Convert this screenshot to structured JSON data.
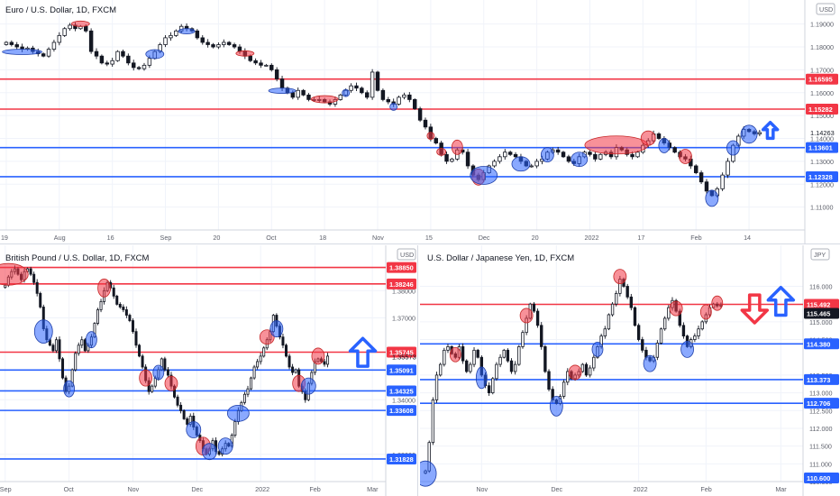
{
  "chart_data": [
    {
      "id": "eur",
      "type": "candlestick",
      "title": "Euro / U.S. Dollar, 1D, FXCM",
      "currency_badge": "USD",
      "ylim": [
        1.1,
        1.195
      ],
      "y_ticks": [
        "1.19000",
        "1.18000",
        "1.17000",
        "1.16000",
        "1.15000",
        "1.14000",
        "1.13000",
        "1.12000",
        "1.11000"
      ],
      "y_tick_values": [
        1.19,
        1.18,
        1.17,
        1.16,
        1.15,
        1.14,
        1.13,
        1.12,
        1.11
      ],
      "x_ticks": [
        "19",
        "Aug",
        "16",
        "Sep",
        "20",
        "Oct",
        "18",
        "Nov",
        "15",
        "Dec",
        "20",
        "2022",
        "17",
        "Feb",
        "14"
      ],
      "x_tick_bars": [
        0,
        10,
        20,
        30,
        40,
        50,
        60,
        70,
        80,
        90,
        100,
        110,
        120,
        130,
        140
      ],
      "n_bars": 150,
      "resistance": [
        1.16595,
        1.15282
      ],
      "support": [
        1.13601,
        1.12328
      ],
      "price_labels": [
        {
          "text": "1.16595",
          "kind": "res"
        },
        {
          "text": "1.15282",
          "kind": "res"
        },
        {
          "text": "1.14263",
          "kind": "plain"
        },
        {
          "text": "1.13601",
          "kind": "sup"
        },
        {
          "text": "1.12328",
          "kind": "sup"
        }
      ],
      "closes": [
        1.182,
        1.181,
        1.18,
        1.179,
        1.1795,
        1.178,
        1.177,
        1.176,
        1.179,
        1.182,
        1.185,
        1.188,
        1.1895,
        1.188,
        1.189,
        1.187,
        1.178,
        1.176,
        1.173,
        1.1725,
        1.174,
        1.178,
        1.176,
        1.173,
        1.171,
        1.1705,
        1.172,
        1.175,
        1.178,
        1.181,
        1.184,
        1.185,
        1.187,
        1.189,
        1.188,
        1.187,
        1.184,
        1.182,
        1.181,
        1.18,
        1.181,
        1.182,
        1.181,
        1.18,
        1.178,
        1.176,
        1.174,
        1.173,
        1.172,
        1.172,
        1.17,
        1.166,
        1.162,
        1.16,
        1.158,
        1.161,
        1.159,
        1.157,
        1.157,
        1.157,
        1.156,
        1.155,
        1.157,
        1.159,
        1.161,
        1.163,
        1.162,
        1.16,
        1.158,
        1.169,
        1.161,
        1.157,
        1.156,
        1.155,
        1.158,
        1.159,
        1.157,
        1.153,
        1.148,
        1.145,
        1.14,
        1.138,
        1.133,
        1.13,
        1.131,
        1.135,
        1.134,
        1.128,
        1.124,
        1.122,
        1.125,
        1.128,
        1.13,
        1.132,
        1.134,
        1.133,
        1.132,
        1.13,
        1.128,
        1.128,
        1.13,
        1.131,
        1.134,
        1.135,
        1.134,
        1.132,
        1.13,
        1.129,
        1.132,
        1.134,
        1.133,
        1.131,
        1.133,
        1.134,
        1.132,
        1.136,
        1.135,
        1.133,
        1.132,
        1.134,
        1.137,
        1.139,
        1.142,
        1.14,
        1.138,
        1.136,
        1.134,
        1.132,
        1.131,
        1.128,
        1.125,
        1.121,
        1.117,
        1.115,
        1.118,
        1.124,
        1.13,
        1.137,
        1.141,
        1.144,
        1.143,
        1.142,
        1.1426
      ]
    },
    {
      "id": "gbp",
      "type": "candlestick",
      "title": "British Pound / U.S. Dollar, 1D, FXCM",
      "currency_badge": "USD",
      "ylim": [
        1.31,
        1.392
      ],
      "y_ticks": [
        "1.38000",
        "1.37000",
        "1.34000",
        "1.32000"
      ],
      "y_tick_values": [
        1.38,
        1.37,
        1.34,
        1.32
      ],
      "x_ticks": [
        "Sep",
        "Oct",
        "Nov",
        "Dec",
        "2022",
        "Feb",
        "Mar"
      ],
      "x_tick_bars": [
        0,
        20,
        40,
        60,
        80,
        97,
        115
      ],
      "n_bars": 118,
      "resistance": [
        1.3885,
        1.38246,
        1.35745
      ],
      "support": [
        1.35091,
        1.34325,
        1.33608,
        1.31828
      ],
      "price_labels": [
        {
          "text": "1.38850",
          "kind": "res"
        },
        {
          "text": "1.38246",
          "kind": "res"
        },
        {
          "text": "1.35745",
          "kind": "res"
        },
        {
          "text": "1.35573",
          "kind": "plain"
        },
        {
          "text": "1.35091",
          "kind": "sup"
        },
        {
          "text": "1.34325",
          "kind": "sup"
        },
        {
          "text": "1.33608",
          "kind": "sup"
        },
        {
          "text": "1.31828",
          "kind": "sup"
        }
      ],
      "closes": [
        1.382,
        1.385,
        1.387,
        1.388,
        1.386,
        1.384,
        1.387,
        1.388,
        1.386,
        1.383,
        1.379,
        1.374,
        1.366,
        1.362,
        1.36,
        1.358,
        1.362,
        1.355,
        1.348,
        1.343,
        1.345,
        1.351,
        1.357,
        1.36,
        1.362,
        1.358,
        1.36,
        1.363,
        1.368,
        1.373,
        1.376,
        1.38,
        1.383,
        1.381,
        1.378,
        1.375,
        1.374,
        1.373,
        1.371,
        1.369,
        1.365,
        1.36,
        1.356,
        1.352,
        1.347,
        1.343,
        1.345,
        1.348,
        1.351,
        1.355,
        1.351,
        1.349,
        1.345,
        1.341,
        1.338,
        1.336,
        1.333,
        1.331,
        1.334,
        1.33,
        1.327,
        1.325,
        1.322,
        1.32,
        1.322,
        1.325,
        1.321,
        1.32,
        1.322,
        1.324,
        1.323,
        1.327,
        1.332,
        1.336,
        1.339,
        1.342,
        1.344,
        1.348,
        1.352,
        1.354,
        1.356,
        1.359,
        1.362,
        1.365,
        1.371,
        1.367,
        1.363,
        1.36,
        1.356,
        1.352,
        1.35,
        1.351,
        1.345,
        1.343,
        1.34,
        1.346,
        1.35,
        1.354,
        1.355,
        1.354,
        1.353,
        1.356
      ]
    },
    {
      "id": "jpy",
      "type": "candlestick",
      "title": "U.S. Dollar / Japanese Yen, 1D, FXCM",
      "currency_badge": "JPY",
      "ylim": [
        110.5,
        116.8
      ],
      "y_ticks": [
        "116.000",
        "115.500",
        "115.000",
        "114.500",
        "113.500",
        "113.000",
        "112.500",
        "112.000",
        "111.500",
        "111.000",
        "110.500"
      ],
      "y_tick_values": [
        116.0,
        115.5,
        115.0,
        114.5,
        113.5,
        113.0,
        112.5,
        112.0,
        111.5,
        111.0,
        110.5
      ],
      "x_ticks": [
        "Nov",
        "Dec",
        "2022",
        "Feb",
        "Mar"
      ],
      "x_tick_bars": [
        15,
        35,
        57,
        75,
        95
      ],
      "n_bars": 100,
      "resistance": [
        115.492
      ],
      "support": [
        114.38,
        113.373,
        112.706
      ],
      "price_labels": [
        {
          "text": "115.492",
          "kind": "res"
        },
        {
          "text": "115.465",
          "kind": "dark"
        },
        {
          "text": "114.380",
          "kind": "sup"
        },
        {
          "text": "113.373",
          "kind": "sup"
        },
        {
          "text": "112.706",
          "kind": "sup"
        },
        {
          "text": "110.600",
          "kind": "sup"
        }
      ],
      "closes": [
        110.8,
        111.6,
        112.8,
        113.5,
        113.8,
        114.2,
        114.3,
        114.1,
        114.0,
        114.3,
        113.9,
        113.6,
        113.8,
        114.2,
        114.0,
        113.5,
        113.2,
        113.0,
        113.4,
        113.8,
        114.0,
        114.2,
        113.9,
        113.6,
        113.8,
        114.3,
        114.7,
        115.1,
        115.5,
        115.3,
        114.9,
        114.3,
        113.6,
        113.1,
        112.8,
        112.7,
        112.9,
        113.3,
        113.6,
        113.4,
        113.5,
        113.6,
        113.8,
        113.5,
        113.7,
        114.0,
        114.3,
        114.6,
        114.8,
        115.2,
        115.5,
        115.8,
        116.2,
        116.0,
        115.7,
        115.4,
        114.9,
        114.5,
        114.2,
        114.0,
        113.9,
        114.0,
        114.4,
        114.8,
        115.1,
        115.4,
        115.6,
        115.3,
        114.9,
        114.6,
        114.3,
        114.5,
        114.6,
        114.8,
        115.0,
        115.2,
        115.4,
        115.5,
        115.45,
        115.47
      ]
    }
  ]
}
